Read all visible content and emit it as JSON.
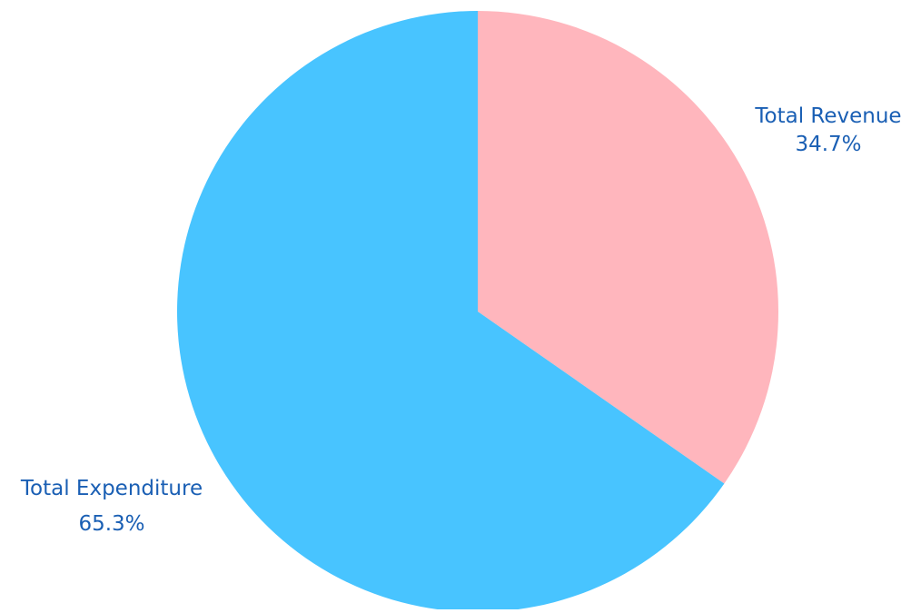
{
  "chart_data": {
    "type": "pie",
    "title": "",
    "start_angle": "12 o'clock",
    "direction": "clockwise",
    "slices": [
      {
        "label": "Total Revenue",
        "value": 34.7,
        "value_label": "34.7%",
        "color": "#FFB6BD"
      },
      {
        "label": "Total Expenditure",
        "value": 65.3,
        "value_label": "65.3%",
        "color": "#48C4FF"
      }
    ],
    "label_color": "#1A5FB4",
    "legend": "none"
  }
}
